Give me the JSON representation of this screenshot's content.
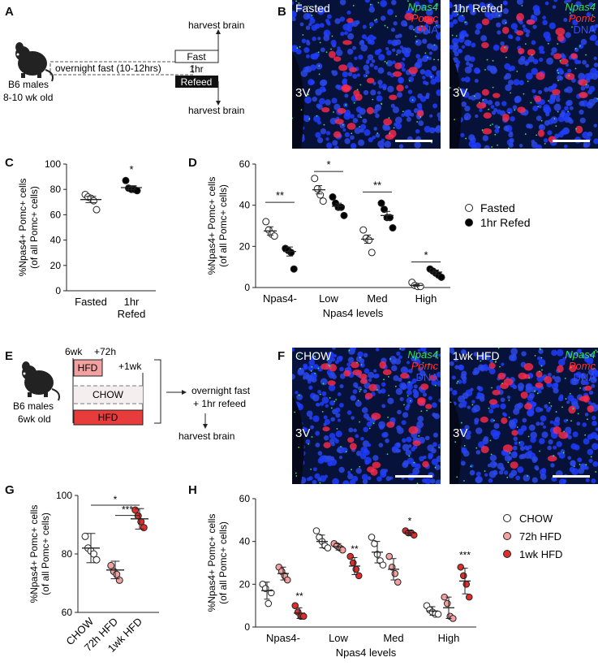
{
  "panels": {
    "A": "A",
    "B": "B",
    "C": "C",
    "D": "D",
    "E": "E",
    "F": "F",
    "G": "G",
    "H": "H"
  },
  "schemaA": {
    "mouse": [
      "B6 males",
      "8-10 wk old"
    ],
    "fast_label": "overnight fast (10-12hrs)",
    "fast": "Fast",
    "interval": "1hr",
    "refed": "Refeed",
    "harvest_top": "harvest brain",
    "harvest_bottom": "harvest brain"
  },
  "micrographsB": {
    "left": {
      "label": "Fasted"
    },
    "right": {
      "label": "1hr Refed"
    },
    "npas4": "Npas4",
    "pomc": "Pomc",
    "dna": "DNA",
    "v3": "3V"
  },
  "schemaE": {
    "mouse": [
      "B6 males",
      "6wk old"
    ],
    "t0": "6wk",
    "t1": "+72h",
    "t2": "+1wk",
    "hfd": "HFD",
    "chow": "CHOW",
    "fast": [
      "overnight fast",
      "+ 1hr refeed"
    ],
    "harvest": "harvest brain"
  },
  "micrographsF": {
    "left": {
      "label": "CHOW"
    },
    "right": {
      "label": "1wk HFD"
    },
    "npas4": "Npas4",
    "pomc": "Pomc",
    "dna": "DNA",
    "v3": "3V"
  },
  "colors": {
    "chow": "#ffffff",
    "hfd72": "#f3a0a0",
    "hfd1wk": "#dd2d2d",
    "filled": "#000000"
  },
  "chart_data": [
    {
      "id": "C",
      "type": "scatter",
      "ylabel": [
        "%Npas4+ Pomc+ cells",
        "(of all Pomc+ cells)"
      ],
      "ylim": [
        0,
        100
      ],
      "yticks": [
        0,
        20,
        40,
        60,
        80,
        100
      ],
      "categories": [
        [
          "Fasted"
        ],
        [
          "1hr",
          "Refed"
        ]
      ],
      "series": [
        {
          "category": 0,
          "fill": "open",
          "points": [
            76,
            74,
            73,
            71,
            64
          ],
          "mean": 72,
          "sem": 2.5
        },
        {
          "category": 1,
          "fill": "closed",
          "points": [
            87,
            81,
            80,
            80,
            79
          ],
          "mean": 81.4,
          "sem": 1.5
        }
      ],
      "annotations": [
        {
          "text": "*",
          "category": 1,
          "y": 93
        }
      ]
    },
    {
      "id": "D",
      "type": "scatter",
      "ylabel": [
        "%Npas4+ Pomc+ cells",
        "(of all Pomc+ cells)"
      ],
      "xlabel": "Npas4 levels",
      "ylim": [
        0,
        60
      ],
      "yticks": [
        0,
        20,
        40,
        60
      ],
      "categories": [
        "Npas4-",
        "Low",
        "Med",
        "High"
      ],
      "legend": [
        "Fasted",
        "1hr Refed"
      ],
      "series": [
        {
          "fill": "open",
          "groups": [
            {
              "points": [
                32,
                28,
                26,
                25
              ],
              "mean": 27.5,
              "sem": 2
            },
            {
              "points": [
                53,
                48,
                45,
                42
              ],
              "mean": 47.5,
              "sem": 2
            },
            {
              "points": [
                28,
                24,
                23,
                17
              ],
              "mean": 23.5,
              "sem": 2
            },
            {
              "points": [
                2.5,
                1,
                0.5,
                0.5
              ],
              "mean": 1,
              "sem": 0.5
            }
          ]
        },
        {
          "fill": "closed",
          "groups": [
            {
              "points": [
                19,
                18,
                17,
                9
              ],
              "mean": 17.5,
              "sem": 2.2
            },
            {
              "points": [
                44,
                41,
                39,
                39,
                35
              ],
              "mean": 39.5,
              "sem": 1.5
            },
            {
              "points": [
                41,
                38,
                34,
                34,
                29
              ],
              "mean": 35,
              "sem": 2
            },
            {
              "points": [
                9,
                8,
                7,
                6,
                5
              ],
              "mean": 7.5,
              "sem": 1
            }
          ]
        }
      ],
      "annotations": [
        {
          "text": "**",
          "category": 0,
          "y": 43
        },
        {
          "text": "*",
          "category": 1,
          "y": 58
        },
        {
          "text": "**",
          "category": 2,
          "y": 48
        },
        {
          "text": "*",
          "category": 3,
          "y": 14
        }
      ]
    },
    {
      "id": "G",
      "type": "scatter",
      "ylabel": [
        "%Npas4+ Pomc+ cells",
        "(of all Pomc+ cells)"
      ],
      "ylim": [
        60,
        100
      ],
      "yticks": [
        60,
        80,
        100
      ],
      "categories": [
        "CHOW",
        "72h HFD",
        "1wk HFD"
      ],
      "series": [
        {
          "name": "CHOW",
          "fill": "#ffffff",
          "points": [
            86,
            82,
            81,
            80,
            78
          ],
          "mean": 82,
          "sd": 5
        },
        {
          "name": "72h HFD",
          "fill": "#f3a0a0",
          "points": [
            76,
            74,
            73,
            71
          ],
          "mean": 74.5,
          "sd": 3
        },
        {
          "name": "1wk HFD",
          "fill": "#dd2d2d",
          "points": [
            95,
            93,
            91,
            89
          ],
          "mean": 92,
          "sd": 3.5
        }
      ],
      "annotations": [
        {
          "text": "*",
          "from": 0,
          "to": 2,
          "y": 97.5
        },
        {
          "text": "***",
          "from": 1,
          "to": 2,
          "y": 94
        }
      ]
    },
    {
      "id": "H",
      "type": "scatter",
      "ylabel": [
        "%Npas4+ Pomc+ cells",
        "(of all Pomc+ cells)"
      ],
      "xlabel": "Npas4 levels",
      "ylim": [
        0,
        60
      ],
      "yticks": [
        0,
        20,
        40,
        60
      ],
      "categories": [
        "Npas4-",
        "Low",
        "Med",
        "High"
      ],
      "legend": [
        "CHOW",
        "72h HFD",
        "1wk HFD"
      ],
      "series": [
        {
          "name": "CHOW",
          "fill": "#ffffff",
          "groups": [
            {
              "points": [
                20,
                18,
                11,
                16
              ],
              "mean": 17,
              "sd": 4
            },
            {
              "points": [
                45,
                42,
                40,
                38,
                37
              ],
              "mean": 40,
              "sd": 3
            },
            {
              "points": [
                42,
                39,
                34,
                31,
                29
              ],
              "mean": 35,
              "sd": 5
            },
            {
              "points": [
                10,
                8,
                7,
                6,
                6
              ],
              "mean": 7.5,
              "sd": 2
            }
          ]
        },
        {
          "name": "72h HFD",
          "fill": "#f3a0a0",
          "groups": [
            {
              "points": [
                28,
                26,
                24,
                22
              ],
              "mean": 25,
              "sd": 3
            },
            {
              "points": [
                39,
                38,
                37,
                36
              ],
              "mean": 37.5,
              "sd": 1.5
            },
            {
              "points": [
                33,
                28,
                25,
                21
              ],
              "mean": 27,
              "sd": 5
            },
            {
              "points": [
                14,
                11,
                5,
                4
              ],
              "mean": 9,
              "sd": 5
            }
          ]
        },
        {
          "name": "1wk HFD",
          "fill": "#dd2d2d",
          "groups": [
            {
              "points": [
                10,
                7,
                5,
                5
              ],
              "mean": 6.5,
              "sd": 2.5
            },
            {
              "points": [
                33,
                30,
                27,
                24
              ],
              "mean": 28.5,
              "sd": 4
            },
            {
              "points": [
                45,
                44,
                44,
                43
              ],
              "mean": 44,
              "sd": 1
            },
            {
              "points": [
                28,
                24,
                20,
                14
              ],
              "mean": 21.5,
              "sd": 6
            }
          ]
        }
      ],
      "annotations": [
        {
          "text": "**",
          "category": 0,
          "series": 2,
          "y": 13
        },
        {
          "text": "**",
          "category": 1,
          "series": 2,
          "y": 35
        },
        {
          "text": "*",
          "category": 2,
          "series": 2,
          "y": 48
        },
        {
          "text": "***",
          "category": 3,
          "series": 2,
          "y": 32
        }
      ]
    }
  ]
}
